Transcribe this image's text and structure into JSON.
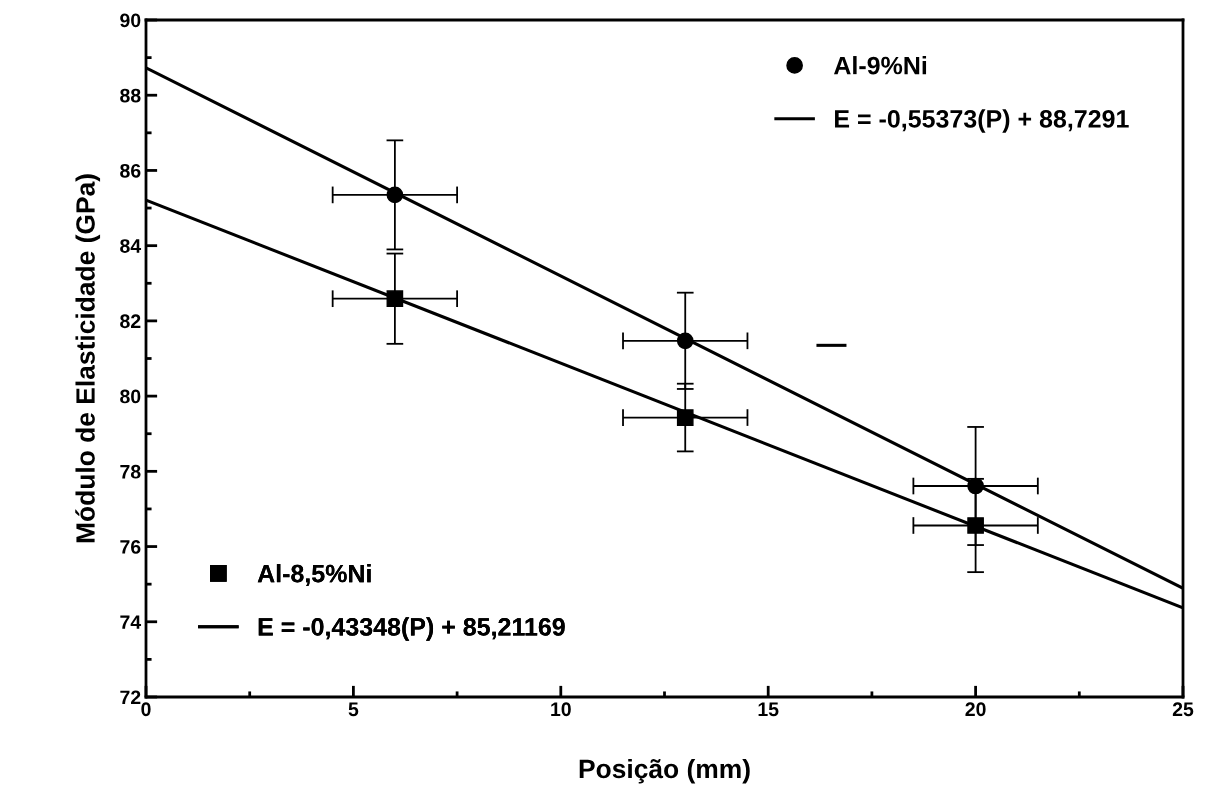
{
  "chart_data": {
    "type": "scatter",
    "xlabel": "Posição (mm)",
    "ylabel": "Módulo de Elasticidade (GPa)",
    "xlim": [
      0,
      25
    ],
    "xticks": [
      0,
      5,
      10,
      15,
      20,
      25
    ],
    "ylim": [
      72,
      90
    ],
    "yticks": [
      72,
      74,
      76,
      78,
      80,
      82,
      84,
      86,
      88,
      90
    ],
    "grid": false,
    "legend": "top right",
    "series": [
      {
        "name": "Al-9%Ni",
        "marker": "circle",
        "color": "#000000",
        "x": [
          6,
          13,
          20
        ],
        "values": [
          85.35,
          81.47,
          77.61
        ],
        "errors": [
          1.45,
          1.28,
          1.57
        ],
        "xerrors": [
          1.5,
          1.5,
          1.5
        ]
      },
      {
        "name": "E = -0,55373(P) + 88,7291",
        "type": "line",
        "marker": "none",
        "color": "#000000",
        "x": [
          0,
          25
        ],
        "values": [
          88.73,
          74.89
        ]
      },
      {
        "name": "Al-8,5%Ni",
        "marker": "square",
        "color": "#000000",
        "x": [
          6,
          13,
          20
        ],
        "values": [
          82.59,
          79.43,
          76.56
        ],
        "errors": [
          1.2,
          0.9,
          1.24
        ],
        "xerrors": [
          1.5,
          1.5,
          1.5
        ]
      },
      {
        "name": "E = -0,43348(P) + 85,21169",
        "type": "line",
        "marker": "none",
        "color": "#000000",
        "x": [
          0,
          25
        ],
        "values": [
          85.21,
          74.37
        ]
      },
      {
        "type": "line",
        "marker": "none",
        "color": "#000000",
        "x": [
          16.2,
          16.85
        ],
        "values": [
          81.35,
          81.35
        ]
      }
    ]
  }
}
